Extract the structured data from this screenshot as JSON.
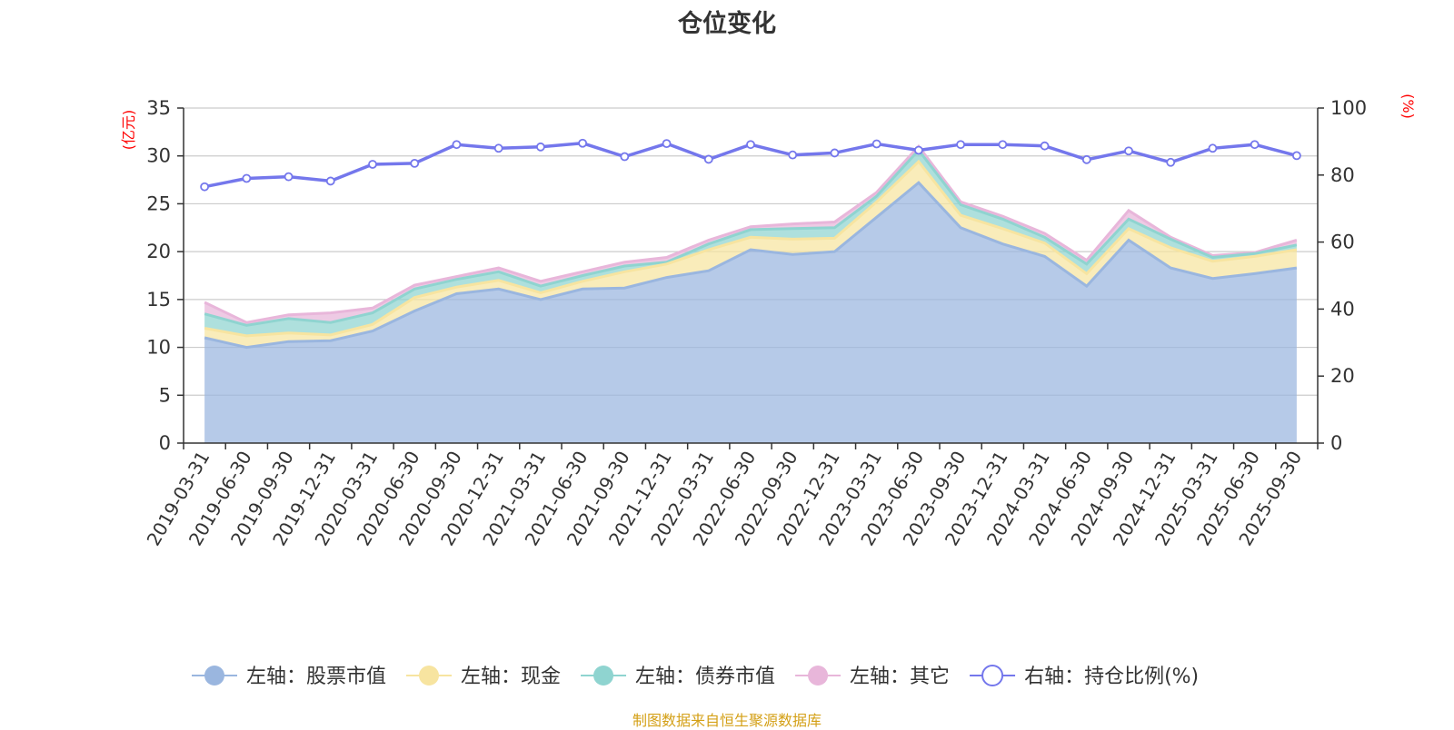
{
  "title": "仓位变化",
  "footer_note": "制图数据来自恒生聚源数据库",
  "colors": {
    "stock": "#9ab6df",
    "cash": "#f7e4a0",
    "bond": "#8fd4d0",
    "other": "#e8b6da",
    "ratio": "#7477ec",
    "axis_unit": "#ff0000",
    "footer": "#d4a017"
  },
  "chart_data": {
    "type": "area",
    "left_axis": {
      "unit_label": "(亿元)",
      "ylim": [
        0,
        35
      ],
      "ticks": [
        "0",
        "5",
        "10",
        "15",
        "20",
        "25",
        "30",
        "35"
      ]
    },
    "right_axis": {
      "unit_label": "(%)",
      "ylim": [
        0,
        100
      ],
      "ticks": [
        "0",
        "20",
        "40",
        "60",
        "80",
        "100"
      ]
    },
    "grid": true,
    "legend_position": "bottom",
    "x": [
      "2019-03-31",
      "2019-06-30",
      "2019-09-30",
      "2019-12-31",
      "2020-03-31",
      "2020-06-30",
      "2020-09-30",
      "2020-12-31",
      "2021-03-31",
      "2021-06-30",
      "2021-09-30",
      "2021-12-31",
      "2022-03-31",
      "2022-06-30",
      "2022-09-30",
      "2022-12-31",
      "2023-03-31",
      "2023-06-30",
      "2023-09-30",
      "2023-12-31",
      "2024-03-31",
      "2024-06-30",
      "2024-09-30",
      "2024-12-31",
      "2025-03-31",
      "2025-06-30",
      "2025-09-30"
    ],
    "series": [
      {
        "name": "左轴：股票市值",
        "axis": "left",
        "stack": true,
        "color_key": "stock",
        "values": [
          11.0,
          10.0,
          10.6,
          10.7,
          11.7,
          13.8,
          15.6,
          16.1,
          15.0,
          16.1,
          16.2,
          17.3,
          18.0,
          20.2,
          19.7,
          20.0,
          23.6,
          27.2,
          22.5,
          20.8,
          19.5,
          16.4,
          21.2,
          18.3,
          17.2,
          17.7,
          18.3
        ]
      },
      {
        "name": "左轴：现金",
        "axis": "left",
        "stack": true,
        "color_key": "cash",
        "values": [
          1.0,
          1.2,
          0.9,
          0.6,
          0.7,
          1.4,
          0.7,
          0.9,
          0.7,
          0.8,
          1.7,
          1.4,
          2.2,
          1.3,
          1.6,
          1.4,
          1.6,
          2.2,
          1.3,
          1.6,
          1.4,
          1.3,
          1.2,
          2.1,
          1.8,
          1.8,
          1.9
        ]
      },
      {
        "name": "左轴：债券市值",
        "axis": "left",
        "stack": true,
        "color_key": "bond",
        "values": [
          1.5,
          1.1,
          1.5,
          1.3,
          1.2,
          0.9,
          0.8,
          0.9,
          0.7,
          0.6,
          0.6,
          0.2,
          0.6,
          0.8,
          1.1,
          1.1,
          0.6,
          1.2,
          1.1,
          1.0,
          0.6,
          1.0,
          1.0,
          0.9,
          0.4,
          0.3,
          0.5
        ]
      },
      {
        "name": "左轴：其它",
        "axis": "left",
        "stack": true,
        "color_key": "other",
        "values": [
          1.2,
          0.3,
          0.4,
          1.0,
          0.5,
          0.4,
          0.3,
          0.4,
          0.5,
          0.4,
          0.4,
          0.5,
          0.4,
          0.3,
          0.5,
          0.6,
          0.4,
          0.4,
          0.3,
          0.3,
          0.4,
          0.4,
          0.9,
          0.2,
          0.2,
          0.1,
          0.5
        ]
      },
      {
        "name": "右轴：持仓比例(%)",
        "axis": "right",
        "stack": false,
        "color_key": "ratio",
        "values": [
          76.5,
          79.0,
          79.5,
          78.2,
          83.2,
          83.5,
          89.1,
          88.0,
          88.4,
          89.5,
          85.5,
          89.4,
          84.7,
          89.1,
          86.0,
          86.6,
          89.3,
          87.4,
          89.1,
          89.1,
          88.7,
          84.6,
          87.2,
          83.8,
          88.0,
          89.1,
          85.8
        ]
      }
    ]
  }
}
